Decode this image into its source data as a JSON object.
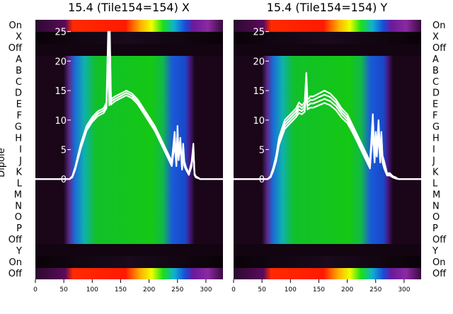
{
  "ylabel": "Dipole",
  "dipole_labels": [
    "Off",
    "On",
    "Y",
    "Off",
    "P",
    "O",
    "N",
    "M",
    "L",
    "K",
    "J",
    "I",
    "H",
    "G",
    "F",
    "E",
    "D",
    "C",
    "B",
    "A",
    "Off",
    "X",
    "On"
  ],
  "panels": [
    {
      "id": "x",
      "title": "15.4 (Tile154=154) X"
    },
    {
      "id": "y",
      "title": "15.4 (Tile154=154) Y"
    }
  ],
  "chart_data": [
    {
      "type": "line",
      "title": "15.4 (Tile154=154) X",
      "x_ticks": [
        0,
        50,
        100,
        150,
        200,
        250,
        300
      ],
      "y_ticks": [
        0,
        5,
        10,
        15,
        20,
        25
      ],
      "xlim": [
        0,
        330
      ],
      "ylim": [
        -17,
        27
      ],
      "series": [
        {
          "x": [
            0,
            50,
            60,
            65,
            70,
            75,
            80,
            90,
            100,
            110,
            120,
            125,
            128,
            130,
            131,
            133,
            135,
            140,
            150,
            160,
            170,
            180,
            190,
            200,
            210,
            220,
            230,
            240,
            245,
            248,
            250,
            252,
            255,
            258,
            260,
            262,
            265,
            270,
            275,
            278,
            280,
            282,
            290,
            300,
            330
          ],
          "y": [
            0,
            0,
            0,
            0.5,
            2,
            4,
            6,
            9,
            10.5,
            11.5,
            12,
            13,
            25,
            13.5,
            25,
            13.5,
            13.7,
            14,
            14.5,
            15,
            14.5,
            13.5,
            12,
            10.5,
            9,
            7,
            5,
            3,
            8,
            3,
            9,
            4,
            7,
            2,
            6,
            3,
            2,
            1,
            3,
            6,
            1,
            0.5,
            0,
            0,
            0
          ]
        },
        {
          "x": [
            0,
            50,
            60,
            65,
            70,
            75,
            80,
            90,
            100,
            110,
            120,
            125,
            128,
            130,
            131,
            133,
            135,
            140,
            150,
            160,
            170,
            180,
            190,
            200,
            210,
            220,
            230,
            240,
            245,
            248,
            250,
            252,
            255,
            258,
            260,
            262,
            265,
            270,
            275,
            278,
            280,
            282,
            290,
            300,
            330
          ],
          "y": [
            0,
            0,
            0,
            0.4,
            1.8,
            3.7,
            5.6,
            8.6,
            10.1,
            11.1,
            11.6,
            12.5,
            23,
            13,
            23,
            13.1,
            13.3,
            13.6,
            14.1,
            14.6,
            14.1,
            13.1,
            11.6,
            10.1,
            8.6,
            6.6,
            4.6,
            2.6,
            7,
            2.6,
            8,
            3.6,
            6.5,
            1.8,
            5.5,
            2.6,
            1.8,
            0.8,
            2.6,
            5.5,
            0.8,
            0.4,
            0,
            0,
            0
          ]
        },
        {
          "x": [
            0,
            50,
            60,
            65,
            70,
            75,
            80,
            90,
            100,
            110,
            120,
            125,
            128,
            130,
            131,
            133,
            135,
            140,
            150,
            160,
            170,
            180,
            190,
            200,
            210,
            220,
            230,
            240,
            245,
            248,
            250,
            252,
            255,
            258,
            260,
            262,
            265,
            270,
            275,
            278,
            280,
            282,
            290,
            300,
            330
          ],
          "y": [
            0,
            0,
            0,
            0.3,
            1.6,
            3.4,
            5.2,
            8.2,
            9.7,
            10.7,
            11.2,
            12,
            21,
            12.5,
            20,
            12.6,
            12.8,
            13.2,
            13.7,
            14.2,
            13.7,
            12.7,
            11.2,
            9.7,
            8.2,
            6.2,
            4.2,
            2.2,
            6,
            2.2,
            7,
            3.2,
            6,
            1.6,
            5,
            2.2,
            1.6,
            0.7,
            2.2,
            5,
            0.7,
            0.3,
            0,
            0,
            0
          ]
        }
      ]
    },
    {
      "type": "line",
      "title": "15.4 (Tile154=154) Y",
      "x_ticks": [
        0,
        50,
        100,
        150,
        200,
        250,
        300
      ],
      "y_ticks": [
        0,
        5,
        10,
        15,
        20,
        25
      ],
      "xlim": [
        0,
        330
      ],
      "ylim": [
        -17,
        27
      ],
      "series": [
        {
          "x": [
            0,
            50,
            60,
            65,
            70,
            75,
            80,
            90,
            100,
            110,
            115,
            120,
            125,
            128,
            130,
            133,
            135,
            140,
            150,
            160,
            170,
            180,
            190,
            200,
            210,
            220,
            230,
            240,
            242,
            245,
            248,
            250,
            252,
            255,
            258,
            260,
            262,
            265,
            270,
            275,
            280,
            285,
            290,
            300,
            330
          ],
          "y": [
            0,
            0,
            0,
            0.5,
            2,
            4,
            7,
            10,
            11,
            12,
            13,
            12.5,
            13,
            18,
            13.5,
            13.7,
            14,
            14,
            14.5,
            15,
            14.5,
            13.5,
            12,
            11,
            9,
            7,
            5,
            3,
            6,
            11,
            4,
            8,
            5,
            10,
            4,
            8,
            4,
            3,
            1,
            1,
            0.5,
            0.3,
            0,
            0,
            0
          ]
        },
        {
          "x": [
            0,
            50,
            60,
            65,
            70,
            75,
            80,
            90,
            100,
            110,
            115,
            120,
            125,
            128,
            130,
            133,
            135,
            140,
            150,
            160,
            170,
            180,
            190,
            200,
            210,
            220,
            230,
            240,
            242,
            245,
            248,
            250,
            252,
            255,
            258,
            260,
            262,
            265,
            270,
            275,
            280,
            285,
            290,
            300,
            330
          ],
          "y": [
            0,
            0,
            0,
            0.4,
            1.8,
            3.7,
            6.6,
            9.5,
            10.5,
            11.5,
            12.4,
            12,
            12.5,
            17,
            13,
            13.2,
            13.4,
            13.4,
            13.9,
            14.3,
            13.9,
            13,
            11.5,
            10.5,
            8.6,
            6.6,
            4.6,
            2.6,
            5.5,
            10,
            3.6,
            7.4,
            4.6,
            9.2,
            3.6,
            7.4,
            3.6,
            2.6,
            0.8,
            0.8,
            0.4,
            0.2,
            0,
            0,
            0
          ]
        },
        {
          "x": [
            0,
            50,
            60,
            65,
            70,
            75,
            80,
            90,
            100,
            110,
            115,
            120,
            125,
            128,
            130,
            133,
            135,
            140,
            150,
            160,
            170,
            180,
            190,
            200,
            210,
            220,
            230,
            240,
            242,
            245,
            248,
            250,
            252,
            255,
            258,
            260,
            262,
            265,
            270,
            275,
            280,
            285,
            290,
            300,
            330
          ],
          "y": [
            0,
            0,
            0,
            0.3,
            1.6,
            3.4,
            6.2,
            9,
            10,
            11,
            11.8,
            11.5,
            12,
            16,
            12.4,
            12.6,
            12.8,
            12.8,
            13.2,
            13.6,
            13.2,
            12.4,
            11,
            10,
            8.2,
            6.2,
            4.2,
            2.2,
            5,
            9,
            3.2,
            6.8,
            4.2,
            8.4,
            3.2,
            6.8,
            3.2,
            2.2,
            0.7,
            0.7,
            0.3,
            0.2,
            0,
            0,
            0
          ]
        },
        {
          "x": [
            0,
            50,
            60,
            65,
            70,
            75,
            80,
            90,
            100,
            110,
            115,
            120,
            125,
            128,
            130,
            133,
            135,
            140,
            150,
            160,
            170,
            180,
            190,
            200,
            210,
            220,
            230,
            240,
            242,
            245,
            248,
            250,
            252,
            255,
            258,
            260,
            262,
            265,
            270,
            275,
            280,
            285,
            290,
            300,
            330
          ],
          "y": [
            0,
            0,
            0,
            0.3,
            1.4,
            3.1,
            5.8,
            8.5,
            9.5,
            10.5,
            11.2,
            11,
            11.4,
            15,
            11.8,
            12,
            12.1,
            12.1,
            12.5,
            12.9,
            12.5,
            11.7,
            10.4,
            9.5,
            7.8,
            5.8,
            3.8,
            1.8,
            4.5,
            8,
            2.8,
            6.2,
            3.8,
            7.6,
            2.8,
            6.2,
            2.8,
            1.8,
            0.6,
            0.6,
            0.3,
            0.1,
            0,
            0,
            0
          ]
        }
      ]
    }
  ]
}
